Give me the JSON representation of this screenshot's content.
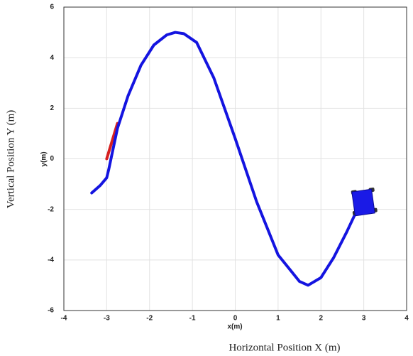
{
  "chart_data": {
    "type": "line",
    "x_label": "x(m)",
    "y_label": "y(m)",
    "outer_x_label": "Horizontal Position X (m)",
    "outer_y_label": "Vertical Position Y (m)",
    "xlim": [
      -4,
      4
    ],
    "ylim": [
      -6,
      6
    ],
    "xticks": [
      -4,
      -3,
      -2,
      -1,
      0,
      1,
      2,
      3,
      4
    ],
    "yticks": [
      -6,
      -4,
      -2,
      0,
      2,
      4,
      6
    ],
    "grid": true,
    "series": [
      {
        "color": "#d62020",
        "x": [
          -3.0,
          -2.75
        ],
        "values": [
          0.0,
          1.4
        ]
      },
      {
        "color": "#1414e0",
        "x": [
          -3.35,
          -3.15,
          -3.0,
          -2.95,
          -2.9,
          -2.75,
          -2.5,
          -2.2,
          -1.9,
          -1.6,
          -1.4,
          -1.2,
          -0.9,
          -0.5,
          0.0,
          0.5,
          1.0,
          1.5,
          1.7,
          2.0,
          2.3,
          2.6,
          2.85
        ],
        "values": [
          -1.35,
          -1.05,
          -0.75,
          -0.4,
          0.0,
          1.2,
          2.5,
          3.7,
          4.5,
          4.9,
          5.0,
          4.95,
          4.6,
          3.2,
          0.8,
          -1.7,
          -3.8,
          -4.85,
          -5.0,
          -4.7,
          -3.9,
          -2.9,
          -2.0
        ]
      }
    ]
  }
}
